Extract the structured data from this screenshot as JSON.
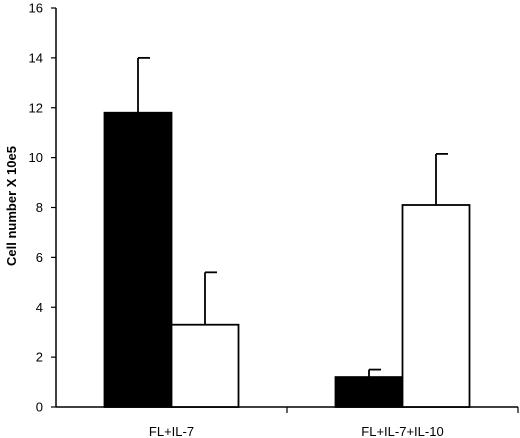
{
  "chart_data": {
    "type": "bar",
    "title": "",
    "xlabel": "",
    "ylabel": "Cell number X 10e5",
    "categories": [
      "FL+IL-7",
      "FL+IL-7+IL-10"
    ],
    "series": [
      {
        "color": "#000000",
        "values": [
          11.8,
          1.2
        ],
        "errors": [
          2.2,
          0.3
        ]
      },
      {
        "color": "#ffffff",
        "values": [
          3.3,
          8.1
        ],
        "errors": [
          2.1,
          2.05
        ]
      }
    ],
    "ylim": [
      0,
      16
    ],
    "yticks": [
      "0",
      "2",
      "4",
      "6",
      "8",
      "10",
      "12",
      "14",
      "16"
    ],
    "grid": false,
    "legend": "none"
  }
}
